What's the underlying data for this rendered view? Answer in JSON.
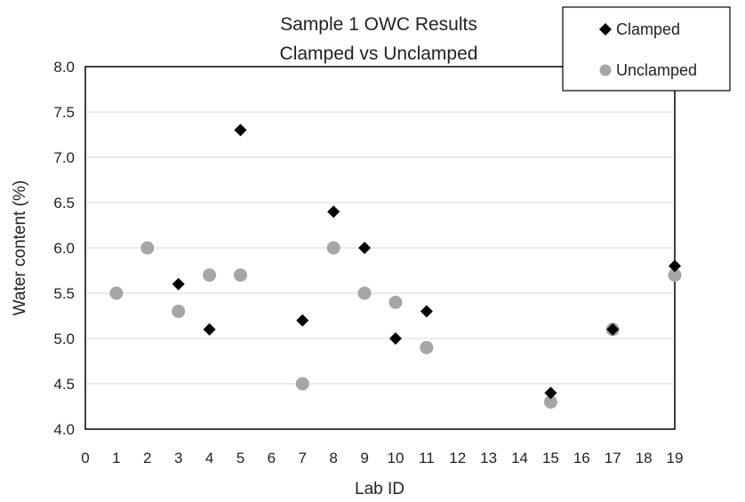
{
  "chart_data": {
    "type": "scatter",
    "title_lines": [
      "Sample 1 OWC Results",
      "Clamped vs Unclamped"
    ],
    "xlabel": "Lab ID",
    "ylabel": "Water content (%)",
    "xlim": [
      0,
      19
    ],
    "ylim": [
      4.0,
      8.0
    ],
    "xticks": [
      0,
      1,
      2,
      3,
      4,
      5,
      6,
      7,
      8,
      9,
      10,
      11,
      12,
      13,
      14,
      15,
      16,
      17,
      18,
      19
    ],
    "yticks": [
      "4.0",
      "4.5",
      "5.0",
      "5.5",
      "6.0",
      "6.5",
      "7.0",
      "7.5",
      "8.0"
    ],
    "grid": "horizontal",
    "legend_position": "top-right",
    "series": [
      {
        "name": "Clamped",
        "marker": "diamond",
        "color": "#000000",
        "points": [
          {
            "x": 3,
            "y": 5.6
          },
          {
            "x": 4,
            "y": 5.1
          },
          {
            "x": 5,
            "y": 7.3
          },
          {
            "x": 7,
            "y": 5.2
          },
          {
            "x": 8,
            "y": 6.4
          },
          {
            "x": 9,
            "y": 6.0
          },
          {
            "x": 10,
            "y": 5.0
          },
          {
            "x": 11,
            "y": 5.3
          },
          {
            "x": 15,
            "y": 4.4
          },
          {
            "x": 17,
            "y": 5.1
          },
          {
            "x": 19,
            "y": 5.8
          }
        ]
      },
      {
        "name": "Unclamped",
        "marker": "circle",
        "color": "#a6a6a6",
        "points": [
          {
            "x": 1,
            "y": 5.5
          },
          {
            "x": 2,
            "y": 6.0
          },
          {
            "x": 3,
            "y": 5.3
          },
          {
            "x": 4,
            "y": 5.7
          },
          {
            "x": 5,
            "y": 5.7
          },
          {
            "x": 7,
            "y": 4.5
          },
          {
            "x": 8,
            "y": 6.0
          },
          {
            "x": 9,
            "y": 5.5
          },
          {
            "x": 10,
            "y": 5.4
          },
          {
            "x": 11,
            "y": 4.9
          },
          {
            "x": 15,
            "y": 4.3
          },
          {
            "x": 17,
            "y": 5.1
          },
          {
            "x": 19,
            "y": 5.7
          }
        ]
      }
    ]
  }
}
